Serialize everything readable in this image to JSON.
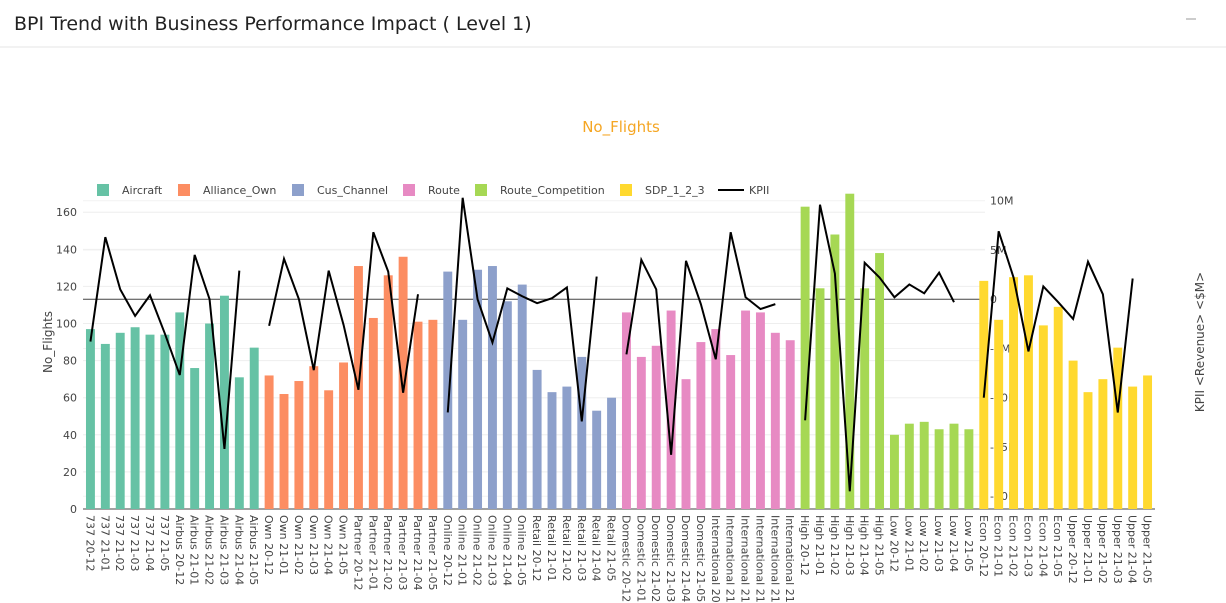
{
  "header": {
    "title": "BPI Trend with Business Performance Impact ( Level 1)"
  },
  "chart_data": {
    "type": "bar_line",
    "title": "No_Flights",
    "ylabel": "No_Flights",
    "y2label": "KPII <Revenue> <$M>",
    "categories": [
      "737 20-12",
      "737 21-01",
      "737 21-02",
      "737 21-03",
      "737 21-04",
      "737 21-05",
      "Airbus 20-12",
      "Airbus 21-01",
      "Airbus 21-02",
      "Airbus 21-03",
      "Airbus 21-04",
      "Airbus 21-05",
      "Own 20-12",
      "Own 21-01",
      "Own 21-02",
      "Own 21-03",
      "Own 21-04",
      "Own 21-05",
      "Partner 20-12",
      "Partner 21-01",
      "Partner 21-02",
      "Partner 21-03",
      "Partner 21-04",
      "Partner 21-05",
      "Online 20-12",
      "Online 21-01",
      "Online 21-02",
      "Online 21-03",
      "Online 21-04",
      "Online 21-05",
      "Retail 20-12",
      "Retail 21-01",
      "Retail 21-02",
      "Retail 21-03",
      "Retail 21-04",
      "Retail 21-05",
      "Domestic 20-12",
      "Domestic 21-01",
      "Domestic 21-02",
      "Domestic 21-03",
      "Domestic 21-04",
      "Domestic 21-05",
      "International 20",
      "International 21",
      "International 21",
      "International 21",
      "International 21",
      "International 21",
      "High 20-12",
      "High 21-01",
      "High 21-02",
      "High 21-03",
      "High 21-04",
      "High 21-05",
      "Low 20-12",
      "Low 21-01",
      "Low 21-02",
      "Low 21-03",
      "Low 21-04",
      "Low 21-05",
      "Econ 20-12",
      "Econ 21-01",
      "Econ 21-02",
      "Econ 21-03",
      "Econ 21-04",
      "Econ 21-05",
      "Upper 20-12",
      "Upper 21-01",
      "Upper 21-02",
      "Upper 21-03",
      "Upper 21-04",
      "Upper 21-05"
    ],
    "series": [
      {
        "name": "Aircraft",
        "color": "#66c2a5",
        "values": [
          97,
          89,
          95,
          98,
          94,
          94,
          106,
          76,
          100,
          115,
          71,
          87,
          null,
          null,
          null,
          null,
          null,
          null,
          null,
          null,
          null,
          null,
          null,
          null,
          null,
          null,
          null,
          null,
          null,
          null,
          null,
          null,
          null,
          null,
          null,
          null,
          null,
          null,
          null,
          null,
          null,
          null,
          null,
          null,
          null,
          null,
          null,
          null,
          null,
          null,
          null,
          null,
          null,
          null,
          null,
          null,
          null,
          null,
          null,
          null,
          null,
          null,
          null,
          null,
          null,
          null,
          null,
          null,
          null,
          null,
          null,
          null
        ]
      },
      {
        "name": "Alliance_Own",
        "color": "#fc8d62",
        "values": [
          null,
          null,
          null,
          null,
          null,
          null,
          null,
          null,
          null,
          null,
          null,
          null,
          72,
          62,
          69,
          77,
          64,
          79,
          131,
          103,
          126,
          136,
          101,
          102,
          null,
          null,
          null,
          null,
          null,
          null,
          null,
          null,
          null,
          null,
          null,
          null,
          null,
          null,
          null,
          null,
          null,
          null,
          null,
          null,
          null,
          null,
          null,
          null,
          null,
          null,
          null,
          null,
          null,
          null,
          null,
          null,
          null,
          null,
          null,
          null,
          null,
          null,
          null,
          null,
          null,
          null,
          null,
          null,
          null,
          null,
          null,
          null
        ]
      },
      {
        "name": "Cus_Channel",
        "color": "#8da0cb",
        "values": [
          null,
          null,
          null,
          null,
          null,
          null,
          null,
          null,
          null,
          null,
          null,
          null,
          null,
          null,
          null,
          null,
          null,
          null,
          null,
          null,
          null,
          null,
          null,
          null,
          128,
          102,
          129,
          131,
          112,
          121,
          75,
          63,
          66,
          82,
          53,
          60,
          null,
          null,
          null,
          null,
          null,
          null,
          null,
          null,
          null,
          null,
          null,
          null,
          null,
          null,
          null,
          null,
          null,
          null,
          null,
          null,
          null,
          null,
          null,
          null,
          null,
          null,
          null,
          null,
          null,
          null,
          null,
          null,
          null,
          null,
          null,
          null
        ]
      },
      {
        "name": "Route",
        "color": "#e78ac3",
        "values": [
          null,
          null,
          null,
          null,
          null,
          null,
          null,
          null,
          null,
          null,
          null,
          null,
          null,
          null,
          null,
          null,
          null,
          null,
          null,
          null,
          null,
          null,
          null,
          null,
          null,
          null,
          null,
          null,
          null,
          null,
          null,
          null,
          null,
          null,
          null,
          null,
          106,
          82,
          88,
          107,
          70,
          90,
          97,
          83,
          107,
          106,
          95,
          91,
          null,
          null,
          null,
          null,
          null,
          null,
          null,
          null,
          null,
          null,
          null,
          null,
          null,
          null,
          null,
          null,
          null,
          null,
          null,
          null,
          null,
          null,
          null,
          null
        ]
      },
      {
        "name": "Route_Competition",
        "color": "#a6d854",
        "values": [
          null,
          null,
          null,
          null,
          null,
          null,
          null,
          null,
          null,
          null,
          null,
          null,
          null,
          null,
          null,
          null,
          null,
          null,
          null,
          null,
          null,
          null,
          null,
          null,
          null,
          null,
          null,
          null,
          null,
          null,
          null,
          null,
          null,
          null,
          null,
          null,
          null,
          null,
          null,
          null,
          null,
          null,
          null,
          null,
          null,
          null,
          null,
          null,
          163,
          119,
          148,
          170,
          119,
          138,
          40,
          46,
          47,
          43,
          46,
          43,
          null,
          null,
          null,
          null,
          null,
          null,
          null,
          null,
          null,
          null,
          null,
          null
        ]
      },
      {
        "name": "SDP_1_2_3",
        "color": "#ffd92f",
        "values": [
          null,
          null,
          null,
          null,
          null,
          null,
          null,
          null,
          null,
          null,
          null,
          null,
          null,
          null,
          null,
          null,
          null,
          null,
          null,
          null,
          null,
          null,
          null,
          null,
          null,
          null,
          null,
          null,
          null,
          null,
          null,
          null,
          null,
          null,
          null,
          null,
          null,
          null,
          null,
          null,
          null,
          null,
          null,
          null,
          null,
          null,
          null,
          null,
          null,
          null,
          null,
          null,
          null,
          null,
          null,
          null,
          null,
          null,
          null,
          null,
          123,
          102,
          125,
          126,
          99,
          109,
          80,
          63,
          70,
          87,
          66,
          72
        ]
      },
      {
        "name": "KPII",
        "color": "#000000",
        "axis": "y2",
        "values": [
          -4.3,
          6.3,
          1,
          -1.7,
          0.4,
          -3.5,
          -7.7,
          4.5,
          0,
          -15.2,
          2.9,
          null,
          -2.7,
          4.1,
          0,
          -7.2,
          2.9,
          -2.6,
          -9.2,
          6.8,
          2.8,
          -9.5,
          0.5,
          null,
          -11.5,
          10.3,
          0,
          -4.4,
          1.1,
          0.3,
          -0.4,
          0.1,
          1.2,
          -12.4,
          2.3,
          null,
          -5.6,
          4,
          1,
          -15.8,
          3.9,
          -0.5,
          -6.1,
          6.8,
          0.2,
          -1,
          -0.5,
          null,
          -12.3,
          9.6,
          2.6,
          -19.5,
          3.7,
          2.2,
          0.2,
          1.5,
          0.6,
          2.7,
          -0.3,
          null,
          -10,
          6.9,
          2.2,
          -5.3,
          1.3,
          -0.3,
          -2,
          3.8,
          0.5,
          -11.5,
          2.1,
          null
        ]
      }
    ],
    "ylim": [
      0,
      169.3
    ],
    "yticks": [
      0,
      20,
      40,
      60,
      80,
      100,
      120,
      140,
      160
    ],
    "y2lim": [
      -21.3,
      10.58
    ],
    "y2ticks": [
      {
        "value": 10,
        "label": "10M"
      },
      {
        "value": 5,
        "label": "5M"
      },
      0,
      {
        "value": -5,
        "label": "-5M"
      },
      {
        "value": -10,
        "label": "-10M"
      },
      {
        "value": -15,
        "label": "-15M"
      },
      {
        "value": -20,
        "label": "-20M"
      }
    ],
    "grid": true,
    "legend": "top-left"
  }
}
